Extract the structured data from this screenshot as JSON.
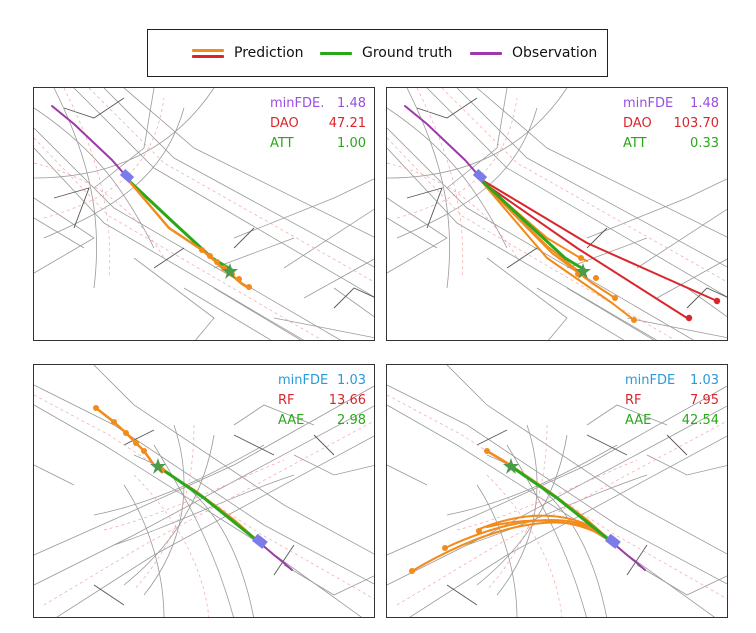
{
  "legend": {
    "prediction": "Prediction",
    "ground_truth": "Ground truth",
    "observation": "Observation"
  },
  "colors": {
    "prediction_orange": "#f28a1c",
    "prediction_red": "#d9262c",
    "ground_truth": "#2aa81a",
    "observation": "#9b3aa8",
    "agent": "#7b7bea",
    "star": "#4c9a4c",
    "metric_purple": "#9a4ee0",
    "metric_blue": "#2a9ad8",
    "metric_red": "#d9262c",
    "metric_green": "#2aa81a"
  },
  "panels": [
    {
      "metrics": [
        {
          "name": "minFDE.",
          "value": "1.48",
          "color": "#9a4ee0"
        },
        {
          "name": "DAO",
          "value": "47.21",
          "color": "#d9262c"
        },
        {
          "name": "ATT",
          "value": "1.00",
          "color": "#2aa81a"
        }
      ]
    },
    {
      "metrics": [
        {
          "name": "minFDE",
          "value": "1.48",
          "color": "#9a4ee0"
        },
        {
          "name": "DAO",
          "value": "103.70",
          "color": "#d9262c"
        },
        {
          "name": "ATT",
          "value": "0.33",
          "color": "#2aa81a"
        }
      ]
    },
    {
      "metrics": [
        {
          "name": "minFDE",
          "value": "1.03",
          "color": "#2a9ad8"
        },
        {
          "name": "RF",
          "value": "13.66",
          "color": "#d9262c"
        },
        {
          "name": "AAE",
          "value": "2.98",
          "color": "#2aa81a"
        }
      ]
    },
    {
      "metrics": [
        {
          "name": "minFDE",
          "value": "1.03",
          "color": "#2a9ad8"
        },
        {
          "name": "RF",
          "value": "7.95",
          "color": "#d9262c"
        },
        {
          "name": "AAE",
          "value": "42.54",
          "color": "#2aa81a"
        }
      ]
    }
  ]
}
